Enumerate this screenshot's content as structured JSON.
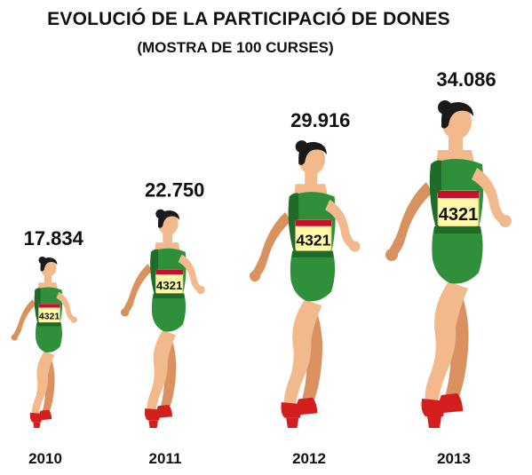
{
  "chart_data": {
    "type": "bar",
    "title": "EVOLUCIÓ DE LA PARTICIPACIÓ DE DONES",
    "subtitle": "(MOSTRA DE 100 CURSES)",
    "categories": [
      "2010",
      "2011",
      "2012",
      "2013"
    ],
    "values": [
      17834,
      22750,
      29916,
      34086
    ],
    "value_labels": [
      "17.834",
      "22.750",
      "29.916",
      "34.086"
    ],
    "mark": "pictogram-runner",
    "bib_number": "4321",
    "colors": {
      "skin": "#f2b98c",
      "skin_shade": "#d9925f",
      "hair": "#1a1a1a",
      "top": "#2f8f3a",
      "top_dark": "#1f6b28",
      "bib": "#fff9a8",
      "bib_band": "#c8102e",
      "shoe": "#d41d1d"
    }
  }
}
